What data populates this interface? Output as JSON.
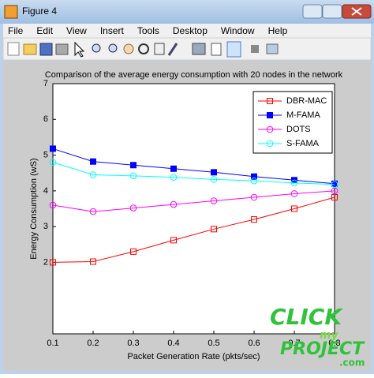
{
  "window": {
    "title": "Figure 4",
    "menu": [
      "File",
      "Edit",
      "View",
      "Insert",
      "Tools",
      "Desktop",
      "Window",
      "Help"
    ]
  },
  "watermark": [
    "CLICK",
    "my",
    "PROJECT",
    ".com"
  ],
  "chart_data": {
    "type": "line",
    "title": "Comparison of the average energy consumption with 20 nodes in the network",
    "x_label": "Packet Generation Rate (pkts/sec)",
    "y_label": "Energy Consumption (wS)",
    "x": [
      0.1,
      0.2,
      0.3,
      0.4,
      0.5,
      0.6,
      0.7,
      0.8
    ],
    "xlim": [
      0.1,
      0.8
    ],
    "xticks": [
      0.1,
      0.2,
      0.3,
      0.4,
      0.5,
      0.6,
      0.7,
      0.8
    ],
    "ylim": [
      0,
      7
    ],
    "yticks": [
      2,
      3,
      4,
      5,
      6,
      7
    ],
    "legend_position": "upper right",
    "series": [
      {
        "name": "DBR-MAC",
        "color": "#ff0000",
        "marker": "square",
        "filled": false,
        "values": [
          2.0,
          2.02,
          2.3,
          2.62,
          2.93,
          3.2,
          3.5,
          3.82
        ]
      },
      {
        "name": "M-FAMA",
        "color": "#0000ff",
        "marker": "square",
        "filled": true,
        "values": [
          5.18,
          4.82,
          4.72,
          4.62,
          4.52,
          4.4,
          4.3,
          4.2
        ]
      },
      {
        "name": "DOTS",
        "color": "#ff00ff",
        "marker": "circle",
        "filled": false,
        "values": [
          3.6,
          3.42,
          3.52,
          3.62,
          3.72,
          3.82,
          3.92,
          4.0
        ]
      },
      {
        "name": "S-FAMA",
        "color": "#00ffff",
        "marker": "circle",
        "filled": false,
        "values": [
          4.8,
          4.45,
          4.42,
          4.38,
          4.32,
          4.28,
          4.22,
          4.18
        ]
      }
    ]
  }
}
